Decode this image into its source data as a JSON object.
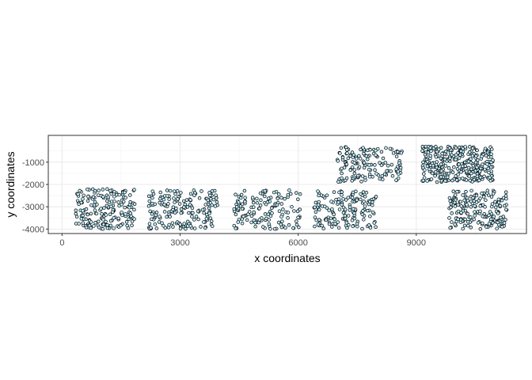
{
  "chart_data": {
    "type": "scatter",
    "title": "",
    "xlabel": "x coordinates",
    "ylabel": "y coordinates",
    "xlim": [
      -350,
      11800
    ],
    "ylim": [
      -4200,
      200
    ],
    "x_ticks": [
      0,
      3000,
      6000,
      9000
    ],
    "x_tick_labels": [
      "0",
      "3000",
      "6000",
      "9000"
    ],
    "y_ticks": [
      -1000,
      -2000,
      -3000,
      -4000
    ],
    "y_tick_labels": [
      "-1000",
      "-2000",
      "-3000",
      "-4000"
    ],
    "grid": true,
    "legend": "none",
    "point_fill": "#bfefff",
    "point_stroke": "#000000",
    "series": [
      {
        "clusters": [
          {
            "x_range": [
              350,
              1850
            ],
            "y_range": [
              -4000,
              -2200
            ],
            "points": 185
          },
          {
            "x_range": [
              2200,
              3950
            ],
            "y_range": [
              -4000,
              -2250
            ],
            "points": 175
          },
          {
            "x_range": [
              4350,
              6050
            ],
            "y_range": [
              -4000,
              -2250
            ],
            "points": 140
          },
          {
            "x_range": [
              6400,
              8000
            ],
            "y_range": [
              -4000,
              -2300
            ],
            "points": 155
          },
          {
            "x_range": [
              6950,
              8650
            ],
            "y_range": [
              -1900,
              -300
            ],
            "points": 150
          },
          {
            "x_range": [
              9150,
              10950
            ],
            "y_range": [
              -1900,
              -300
            ],
            "points": 320
          },
          {
            "x_range": [
              9800,
              11300
            ],
            "y_range": [
              -4000,
              -2250
            ],
            "points": 190
          }
        ]
      }
    ]
  }
}
